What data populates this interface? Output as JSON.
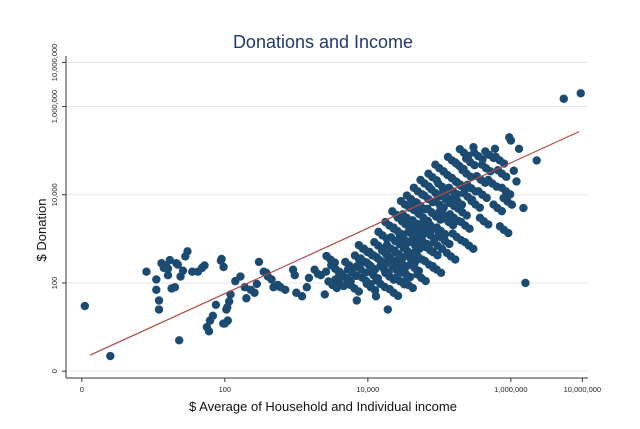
{
  "chart_data": {
    "type": "scatter",
    "title": "Donations and Income",
    "xlabel": "$ Average of Household and Individual income",
    "ylabel": "$ Donation",
    "x_scale": "log10",
    "y_scale": "log10",
    "xlim": [
      0.6,
      12000000
    ],
    "ylim": [
      0.7,
      14000000
    ],
    "grid": true,
    "x_ticks": [
      {
        "value": 1,
        "label": "0"
      },
      {
        "value": 100,
        "label": "100"
      },
      {
        "value": 10000,
        "label": "10,000"
      },
      {
        "value": 1000000,
        "label": "1,000,000"
      },
      {
        "value": 10000000,
        "label": "10,000,000"
      }
    ],
    "y_ticks": [
      {
        "value": 1,
        "label": "0"
      },
      {
        "value": 100,
        "label": "100"
      },
      {
        "value": 10000,
        "label": "10,000"
      },
      {
        "value": 1000000,
        "label": "1,000,000"
      },
      {
        "value": 10000000,
        "label": "10,000,000"
      }
    ],
    "fit_line": {
      "x": [
        1.3,
        9000000
      ],
      "y": [
        2.3,
        270000
      ],
      "color": "#b04a4a"
    },
    "points": [
      [
        1.1,
        30
      ],
      [
        2.5,
        2.2
      ],
      [
        8,
        180
      ],
      [
        11,
        120
      ],
      [
        11,
        70
      ],
      [
        12,
        40
      ],
      [
        12,
        25
      ],
      [
        13,
        280
      ],
      [
        14,
        220
      ],
      [
        15,
        250
      ],
      [
        16,
        210
      ],
      [
        16,
        150
      ],
      [
        17,
        330
      ],
      [
        18,
        75
      ],
      [
        20,
        80
      ],
      [
        21,
        280
      ],
      [
        22,
        260
      ],
      [
        23,
        5
      ],
      [
        24,
        140
      ],
      [
        26,
        190
      ],
      [
        28,
        400
      ],
      [
        30,
        520
      ],
      [
        35,
        180
      ],
      [
        42,
        180
      ],
      [
        48,
        220
      ],
      [
        52,
        250
      ],
      [
        56,
        10
      ],
      [
        60,
        8
      ],
      [
        62,
        14
      ],
      [
        68,
        18
      ],
      [
        75,
        32
      ],
      [
        88,
        320
      ],
      [
        90,
        350
      ],
      [
        95,
        12
      ],
      [
        96,
        230
      ],
      [
        100,
        12
      ],
      [
        105,
        25
      ],
      [
        108,
        28
      ],
      [
        110,
        14
      ],
      [
        115,
        38
      ],
      [
        120,
        55
      ],
      [
        140,
        110
      ],
      [
        165,
        140
      ],
      [
        190,
        80
      ],
      [
        200,
        45
      ],
      [
        230,
        70
      ],
      [
        260,
        60
      ],
      [
        280,
        95
      ],
      [
        300,
        300
      ],
      [
        350,
        180
      ],
      [
        380,
        170
      ],
      [
        400,
        140
      ],
      [
        450,
        120
      ],
      [
        480,
        80
      ],
      [
        550,
        90
      ],
      [
        600,
        80
      ],
      [
        700,
        70
      ],
      [
        900,
        200
      ],
      [
        950,
        150
      ],
      [
        1000,
        60
      ],
      [
        1200,
        50
      ],
      [
        1400,
        80
      ],
      [
        1500,
        130
      ],
      [
        1800,
        200
      ],
      [
        2000,
        160
      ],
      [
        2200,
        150
      ],
      [
        2500,
        55
      ],
      [
        2600,
        180
      ],
      [
        3000,
        340
      ],
      [
        3200,
        90
      ],
      [
        3500,
        210
      ],
      [
        4000,
        100
      ],
      [
        4500,
        140
      ],
      [
        5000,
        130
      ],
      [
        5500,
        250
      ],
      [
        6000,
        170
      ],
      [
        6500,
        75
      ],
      [
        7000,
        40
      ],
      [
        7500,
        350
      ],
      [
        8000,
        200
      ],
      [
        8500,
        600
      ],
      [
        9000,
        300
      ],
      [
        9500,
        110
      ],
      [
        10000,
        500
      ],
      [
        11000,
        80
      ],
      [
        11000,
        240
      ],
      [
        12000,
        420
      ],
      [
        12000,
        150
      ],
      [
        13000,
        50
      ],
      [
        14000,
        700
      ],
      [
        15000,
        320
      ],
      [
        15000,
        95
      ],
      [
        16000,
        1200
      ],
      [
        17000,
        200
      ],
      [
        18000,
        450
      ],
      [
        19000,
        25
      ],
      [
        20000,
        2000
      ],
      [
        20000,
        140
      ],
      [
        21000,
        600
      ],
      [
        22000,
        300
      ],
      [
        23000,
        60
      ],
      [
        24000,
        900
      ],
      [
        25000,
        3500
      ],
      [
        25000,
        200
      ],
      [
        26000,
        1500
      ],
      [
        27000,
        450
      ],
      [
        28000,
        110
      ],
      [
        29000,
        750
      ],
      [
        30000,
        2500
      ],
      [
        30000,
        280
      ],
      [
        32000,
        1000
      ],
      [
        33000,
        6000
      ],
      [
        34000,
        160
      ],
      [
        35000,
        3000
      ],
      [
        36000,
        520
      ],
      [
        37000,
        90
      ],
      [
        38000,
        1800
      ],
      [
        40000,
        8000
      ],
      [
        40000,
        350
      ],
      [
        42000,
        1200
      ],
      [
        44000,
        4500
      ],
      [
        45000,
        220
      ],
      [
        46000,
        700
      ],
      [
        48000,
        2200
      ],
      [
        50000,
        12000
      ],
      [
        50000,
        400
      ],
      [
        52000,
        1500
      ],
      [
        55000,
        5500
      ],
      [
        56000,
        130
      ],
      [
        58000,
        900
      ],
      [
        60000,
        3000
      ],
      [
        62000,
        18000
      ],
      [
        65000,
        650
      ],
      [
        68000,
        2000
      ],
      [
        70000,
        8000
      ],
      [
        72000,
        260
      ],
      [
        75000,
        1200
      ],
      [
        78000,
        4000
      ],
      [
        80000,
        25000
      ],
      [
        82000,
        500
      ],
      [
        85000,
        1700
      ],
      [
        88000,
        11000
      ],
      [
        90000,
        3200
      ],
      [
        92000,
        200
      ],
      [
        95000,
        700
      ],
      [
        100000,
        40000
      ],
      [
        100000,
        6000
      ],
      [
        105000,
        1500
      ],
      [
        110000,
        15000
      ],
      [
        115000,
        3500
      ],
      [
        120000,
        900
      ],
      [
        125000,
        9000
      ],
      [
        130000,
        28000
      ],
      [
        135000,
        2400
      ],
      [
        140000,
        6500
      ],
      [
        145000,
        400
      ],
      [
        150000,
        60000
      ],
      [
        155000,
        12000
      ],
      [
        160000,
        3000
      ],
      [
        170000,
        20000
      ],
      [
        175000,
        1100
      ],
      [
        180000,
        7000
      ],
      [
        190000,
        45000
      ],
      [
        200000,
        16000
      ],
      [
        210000,
        4000
      ],
      [
        220000,
        90000
      ],
      [
        230000,
        2000
      ],
      [
        240000,
        30000
      ],
      [
        250000,
        9000
      ],
      [
        260000,
        700
      ],
      [
        270000,
        55000
      ],
      [
        280000,
        14000
      ],
      [
        300000,
        120000
      ],
      [
        320000,
        6000
      ],
      [
        350000,
        75000
      ],
      [
        380000,
        22000
      ],
      [
        400000,
        10000
      ],
      [
        420000,
        2500
      ],
      [
        450000,
        40000
      ],
      [
        500000,
        80000
      ],
      [
        550000,
        18000
      ],
      [
        600000,
        110000
      ],
      [
        650000,
        5000
      ],
      [
        700000,
        60000
      ],
      [
        750000,
        30000
      ],
      [
        800000,
        1600
      ],
      [
        850000,
        12000
      ],
      [
        900000,
        7000
      ],
      [
        950000,
        200000
      ],
      [
        1000000,
        170000
      ],
      [
        1100000,
        35000
      ],
      [
        1200000,
        20000
      ],
      [
        1300000,
        110000
      ],
      [
        1500000,
        5000
      ],
      [
        1600000,
        100
      ],
      [
        2300000,
        60000
      ],
      [
        5500000,
        1500000
      ],
      [
        9500000,
        2000000
      ]
    ]
  }
}
